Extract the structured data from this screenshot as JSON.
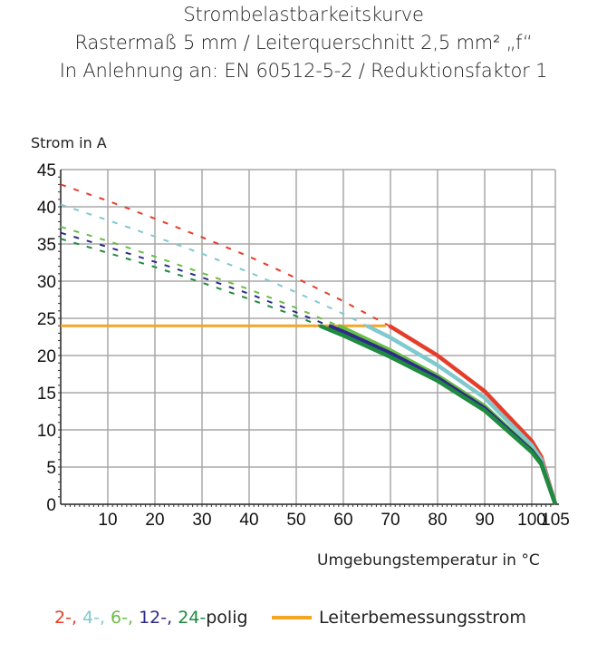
{
  "chart_data": {
    "type": "line",
    "title": [
      "Strombelastbarkeitskurve",
      "Rastermaß 5 mm / Leiterquerschnitt 2,5 mm² „f“",
      "In Anlehnung an: EN 60512-5-2 / Reduktionsfaktor 1"
    ],
    "xlabel": "Umgebungstemperatur in °C",
    "ylabel": "Strom in A",
    "xlim": [
      0,
      105
    ],
    "ylim": [
      0,
      45
    ],
    "xticks": [
      10,
      20,
      30,
      40,
      50,
      60,
      70,
      80,
      90,
      100,
      105
    ],
    "yticks": [
      0,
      5,
      10,
      15,
      20,
      25,
      30,
      35,
      40,
      45
    ],
    "grid": true,
    "legend_position": "bottom",
    "x": [
      0,
      10,
      20,
      30,
      40,
      50,
      60,
      70,
      80,
      90,
      100,
      102,
      105
    ],
    "series": [
      {
        "key": "2",
        "color": "#e63d2a",
        "values": [
          43.0,
          40.8,
          38.4,
          35.9,
          33.3,
          30.4,
          27.3,
          23.9,
          20.0,
          15.2,
          8.5,
          6.4,
          0
        ]
      },
      {
        "key": "4",
        "color": "#80c9cf",
        "values": [
          40.3,
          38.2,
          36.0,
          33.7,
          31.2,
          28.5,
          25.6,
          22.4,
          18.7,
          14.3,
          7.9,
          6.0,
          0
        ]
      },
      {
        "key": "6",
        "color": "#6abd45",
        "values": [
          37.3,
          35.4,
          33.3,
          31.1,
          28.9,
          26.4,
          23.7,
          20.7,
          17.3,
          13.2,
          7.3,
          5.6,
          0
        ]
      },
      {
        "key": "12",
        "color": "#2d2a8a",
        "values": [
          36.5,
          34.6,
          32.6,
          30.5,
          28.3,
          25.8,
          23.2,
          20.3,
          17.0,
          12.9,
          7.2,
          5.5,
          0
        ]
      },
      {
        "key": "24",
        "color": "#1f8b3f",
        "values": [
          35.7,
          33.8,
          31.9,
          29.8,
          27.6,
          25.3,
          22.7,
          19.8,
          16.6,
          12.6,
          7.0,
          5.4,
          0
        ]
      }
    ],
    "rated_current": {
      "name": "Leiterbemessungsstrom",
      "value": 24,
      "x": [
        0,
        69
      ],
      "color": "#f5a524"
    },
    "solid_below": 24
  },
  "legend": {
    "parts": [
      {
        "text": "2-,",
        "color": "#e63d2a"
      },
      {
        "text": " 4-,",
        "color": "#80c9cf"
      },
      {
        "text": " 6-,",
        "color": "#6abd45"
      },
      {
        "text": " 12-,",
        "color": "#2d2a8a"
      },
      {
        "text": " 24-",
        "color": "#1f8b3f"
      },
      {
        "text": "polig",
        "color": "#222222"
      }
    ],
    "rated_label": "Leiterbemessungsstrom"
  }
}
